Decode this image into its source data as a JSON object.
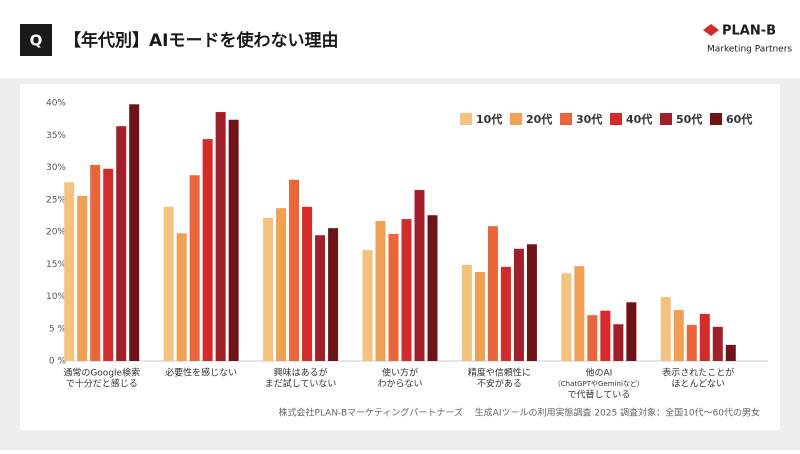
{
  "header": {
    "badge": "Q",
    "title": "【年代別】AIモードを使わない理由",
    "logo": "PLAN-B",
    "logo_sub": "Marketing Partners"
  },
  "chart_data": {
    "type": "bar",
    "categories": [
      [
        "通常のGoogle検索",
        "で十分だと感じる"
      ],
      [
        "必要性を感じない"
      ],
      [
        "興味はあるが",
        "まだ試していない"
      ],
      [
        "使い方が",
        "わからない"
      ],
      [
        "精度や信頼性に",
        "不安がある"
      ],
      [
        "他のAI",
        "（ChatGPTやGeminiなど）",
        "で代替している"
      ],
      [
        "表示されたことが",
        "ほとんどない"
      ]
    ],
    "series": [
      {
        "name": "10代",
        "color": "#f5c27e",
        "values": [
          27.7,
          23.9,
          22.2,
          17.2,
          14.9,
          13.6,
          9.9
        ]
      },
      {
        "name": "20代",
        "color": "#f0a052",
        "values": [
          25.6,
          19.8,
          23.7,
          21.7,
          13.8,
          14.7,
          7.9
        ]
      },
      {
        "name": "30代",
        "color": "#e8663a",
        "values": [
          30.4,
          28.8,
          28.1,
          19.7,
          20.9,
          7.1,
          5.6
        ]
      },
      {
        "name": "40代",
        "color": "#d42a2a",
        "values": [
          29.8,
          34.4,
          23.9,
          22.0,
          14.6,
          7.8,
          7.3
        ]
      },
      {
        "name": "50代",
        "color": "#a01f2a",
        "values": [
          36.4,
          38.6,
          19.5,
          26.5,
          17.4,
          5.7,
          5.3
        ]
      },
      {
        "name": "60代",
        "color": "#6e1418",
        "values": [
          39.8,
          37.4,
          20.6,
          22.6,
          18.1,
          9.1,
          2.5
        ]
      }
    ],
    "ylim": [
      0,
      40
    ],
    "yticks": [
      {
        "value": 0,
        "label": "0 %"
      },
      {
        "value": 5,
        "label": "5 %"
      },
      {
        "value": 10,
        "label": "10%"
      },
      {
        "value": 15,
        "label": "15%"
      },
      {
        "value": 20,
        "label": "20%"
      },
      {
        "value": 25,
        "label": "25%"
      },
      {
        "value": 30,
        "label": "30%"
      },
      {
        "value": 35,
        "label": "35%"
      },
      {
        "value": 40,
        "label": "40%"
      }
    ],
    "grid": false,
    "legend": "top-right",
    "source": "株式会社PLAN-Bマーケティングパートナーズ",
    "note": "生成AIツールの利用実態調査 2025 調査対象：全国10代〜60代の男女"
  }
}
